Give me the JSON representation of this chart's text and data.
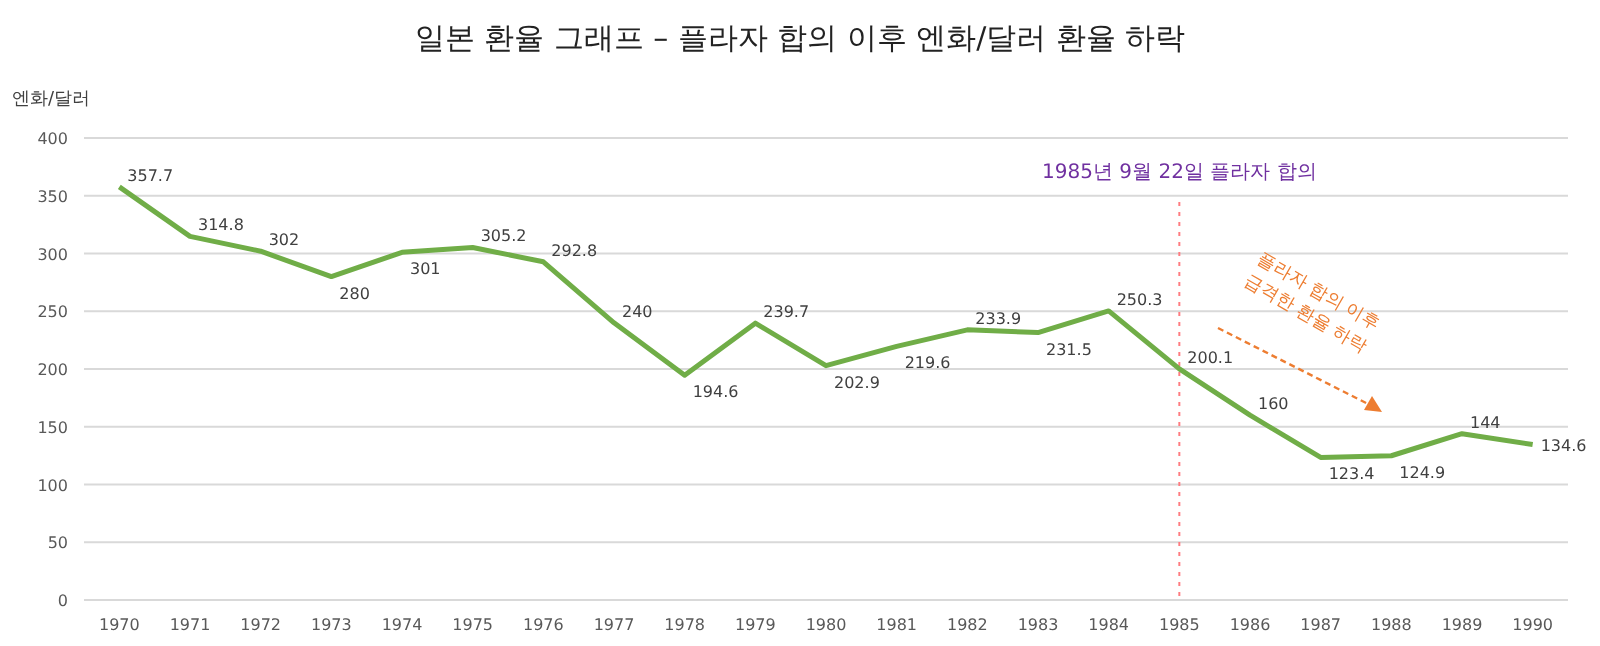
{
  "chart_data": {
    "type": "line",
    "title": "일본 환율 그래프 – 플라자 합의 이후 엔화/달러 환율 하락",
    "ylabel": "엔화/달러",
    "categories": [
      "1970",
      "1971",
      "1972",
      "1973",
      "1974",
      "1975",
      "1976",
      "1977",
      "1978",
      "1979",
      "1980",
      "1981",
      "1982",
      "1983",
      "1984",
      "1985",
      "1986",
      "1987",
      "1988",
      "1989",
      "1990"
    ],
    "series": [
      {
        "color": "#70ad47",
        "values": [
          357.7,
          314.8,
          302,
          280,
          301,
          305.2,
          292.8,
          240,
          194.6,
          239.7,
          202.9,
          219.6,
          233.9,
          231.5,
          250.3,
          200.1,
          160,
          123.4,
          124.9,
          144,
          134.6
        ]
      }
    ],
    "ylim": [
      0,
      400
    ],
    "yticks": [
      0,
      50,
      100,
      150,
      200,
      250,
      300,
      350,
      400
    ],
    "grid": "y",
    "data_labels": true,
    "marker": "none",
    "line_style": "solid",
    "ref_lines": [
      {
        "axis": "x",
        "value": "1985",
        "label": "1985년 9월 22일 플라자 합의",
        "color": "#ff7c80",
        "line_style": "dotted"
      }
    ],
    "annotations": [
      "플라자 합의 이후\n급격한 환율 하락"
    ]
  }
}
